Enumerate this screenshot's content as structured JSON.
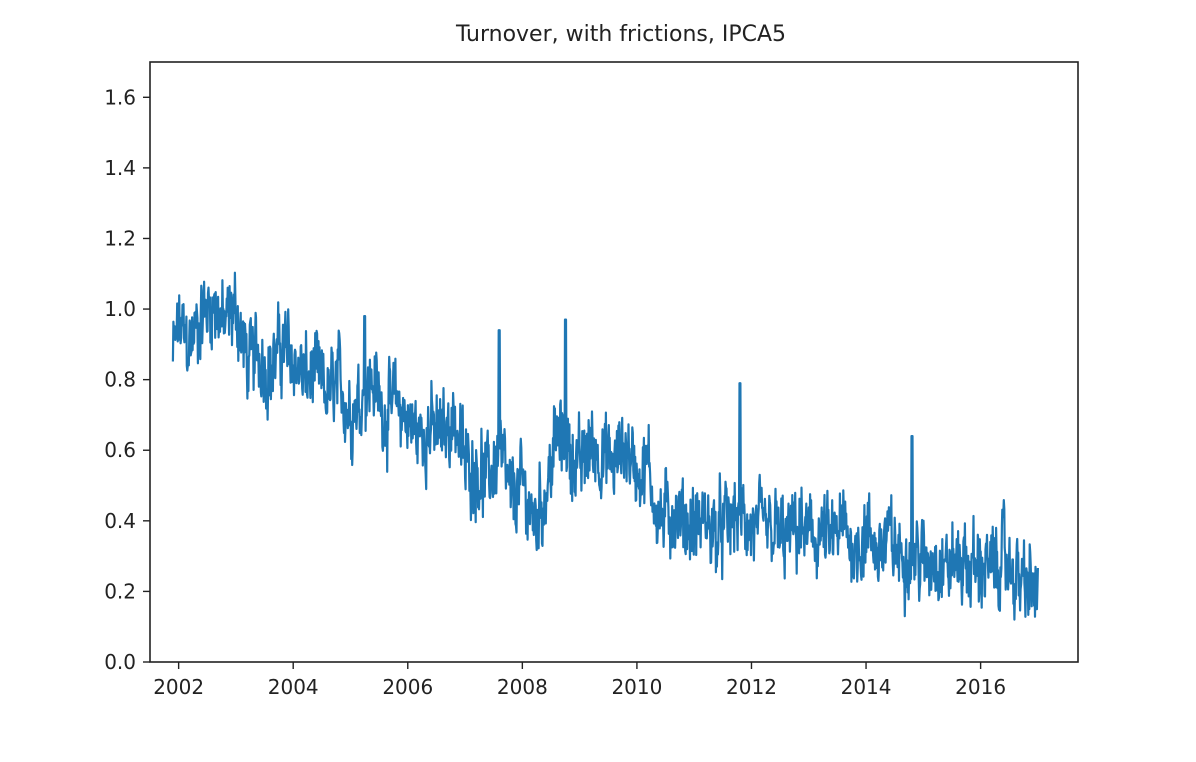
{
  "chart_data": {
    "type": "line",
    "title": "Turnover, with frictions, IPCA5",
    "xlabel": "",
    "ylabel": "",
    "xlim": [
      2001.5,
      2017.7
    ],
    "ylim": [
      0.0,
      1.7
    ],
    "xticks": [
      "2002",
      "2004",
      "2006",
      "2008",
      "2010",
      "2012",
      "2014",
      "2016"
    ],
    "yticks": [
      "0.0",
      "0.2",
      "0.4",
      "0.6",
      "0.8",
      "1.0",
      "1.2",
      "1.4",
      "1.6"
    ],
    "grid": false,
    "line_color": "#1f77b4",
    "series": [
      {
        "x": [
          2001.9,
          2002.0,
          2002.2,
          2002.4,
          2002.6,
          2002.8,
          2003.0,
          2003.2,
          2003.4,
          2003.6,
          2003.8,
          2004.0,
          2004.2,
          2004.4,
          2004.6,
          2004.8,
          2005.0,
          2005.2,
          2005.4,
          2005.6,
          2005.8,
          2006.0,
          2006.2,
          2006.4,
          2006.6,
          2006.8,
          2007.0,
          2007.2,
          2007.4,
          2007.6,
          2007.8,
          2008.0,
          2008.2,
          2008.4,
          2008.6,
          2008.8,
          2009.0,
          2009.2,
          2009.4,
          2009.6,
          2009.8,
          2010.0,
          2010.2,
          2010.4,
          2010.6,
          2010.8,
          2011.0,
          2011.2,
          2011.4,
          2011.6,
          2011.8,
          2012.0,
          2012.2,
          2012.4,
          2012.6,
          2012.8,
          2013.0,
          2013.2,
          2013.4,
          2013.6,
          2013.8,
          2014.0,
          2014.2,
          2014.4,
          2014.6,
          2014.8,
          2015.0,
          2015.2,
          2015.4,
          2015.6,
          2015.8,
          2016.0,
          2016.2,
          2016.4,
          2016.6,
          2016.8,
          2017.0
        ],
        "y": [
          0.86,
          0.95,
          0.9,
          0.98,
          1.02,
          0.95,
          1.0,
          0.85,
          0.88,
          0.82,
          0.9,
          0.86,
          0.8,
          0.82,
          0.75,
          0.8,
          0.7,
          0.76,
          0.8,
          0.7,
          0.74,
          0.68,
          0.65,
          0.66,
          0.64,
          0.7,
          0.56,
          0.55,
          0.52,
          0.6,
          0.46,
          0.5,
          0.4,
          0.48,
          0.64,
          0.6,
          0.55,
          0.62,
          0.58,
          0.56,
          0.62,
          0.54,
          0.55,
          0.4,
          0.42,
          0.4,
          0.38,
          0.4,
          0.36,
          0.4,
          0.42,
          0.37,
          0.38,
          0.37,
          0.34,
          0.38,
          0.35,
          0.36,
          0.34,
          0.38,
          0.32,
          0.36,
          0.32,
          0.35,
          0.3,
          0.32,
          0.28,
          0.3,
          0.27,
          0.29,
          0.27,
          0.28,
          0.26,
          0.3,
          0.24,
          0.22,
          0.2
        ]
      }
    ],
    "spikes": [
      {
        "x": 2005.25,
        "y": 0.98
      },
      {
        "x": 2007.6,
        "y": 0.94
      },
      {
        "x": 2008.75,
        "y": 0.97
      },
      {
        "x": 2011.8,
        "y": 0.79
      },
      {
        "x": 2014.8,
        "y": 0.64
      }
    ]
  }
}
